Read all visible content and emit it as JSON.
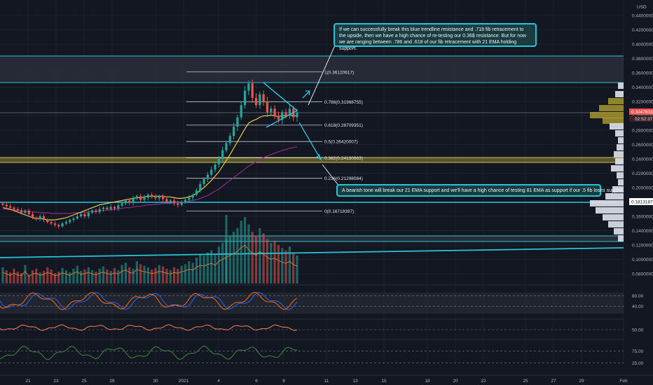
{
  "colors": {
    "bg": "#131722",
    "grid": "#1e222d",
    "up": "#26a69a",
    "down": "#ef5350",
    "ema21": "#e6c84a",
    "ema81": "#8e2a8a",
    "trend": "#26c6da",
    "fib": "#c9ccd3",
    "zone": "#2a2e39",
    "yellow_band": "#d4c34a",
    "vp_light": "#e0e3eb",
    "vp_yellow": "#b8a830",
    "stoch_k": "#2962ff",
    "stoch_d": "#ff6d00",
    "rsi_line": "#ff7d4f",
    "osc_line": "#3b8a3b"
  },
  "axis": {
    "currency": "USD",
    "price_labels": [
      "0.44000000",
      "0.42000000",
      "0.40000000",
      "0.38000000",
      "0.36000000",
      "0.34000000",
      "0.32000000",
      "0.30000000",
      "0.28000000",
      "0.26000000",
      "0.24000000",
      "0.22000000",
      "0.20000000",
      "0.18000000",
      "0.16000000",
      "0.14000000",
      "0.12000000",
      "0.10000000",
      "0.08000000"
    ],
    "current_price": "0.30478339",
    "countdown": "02:52:37",
    "level_label": "0.18131873",
    "date_labels": [
      "21",
      "23",
      "25",
      "28",
      "30",
      "2021",
      "4",
      "6",
      "8",
      "11",
      "13",
      "15",
      "18",
      "20",
      "22",
      "25",
      "27",
      "29",
      "Feb"
    ]
  },
  "panels": {
    "stoch_labels": [
      "80.00",
      "40.00"
    ],
    "rsi_labels": [
      "50.00"
    ],
    "osc_labels": [
      "75.00",
      "25.00"
    ]
  },
  "chart_data": {
    "type": "candlestick",
    "ylim": [
      0.05,
      0.45
    ],
    "fib_levels": [
      {
        "label": "1(0.36120617)",
        "value": 0.36120617
      },
      {
        "label": "0.786(0.31968755)",
        "value": 0.31968755
      },
      {
        "label": "0.618(0.28709351)",
        "value": 0.28709351
      },
      {
        "label": "0.5(0.26420007)",
        "value": 0.26420007
      },
      {
        "label": "0.382(0.24130663)",
        "value": 0.24130663
      },
      {
        "label": "0.236(0.21298084)",
        "value": 0.21298084
      },
      {
        "label": "0(0.16719397)",
        "value": 0.16719397
      }
    ],
    "closes": [
      0.176,
      0.174,
      0.172,
      0.17,
      0.168,
      0.165,
      0.168,
      0.163,
      0.158,
      0.156,
      0.16,
      0.155,
      0.152,
      0.15,
      0.148,
      0.146,
      0.15,
      0.152,
      0.155,
      0.157,
      0.16,
      0.163,
      0.16,
      0.165,
      0.168,
      0.166,
      0.17,
      0.172,
      0.17,
      0.173,
      0.171,
      0.175,
      0.178,
      0.182,
      0.179,
      0.185,
      0.188,
      0.183,
      0.186,
      0.19,
      0.187,
      0.185,
      0.188,
      0.184,
      0.18,
      0.182,
      0.178,
      0.176,
      0.18,
      0.183,
      0.186,
      0.19,
      0.196,
      0.205,
      0.212,
      0.218,
      0.225,
      0.232,
      0.24,
      0.252,
      0.262,
      0.272,
      0.285,
      0.298,
      0.315,
      0.335,
      0.345,
      0.325,
      0.315,
      0.33,
      0.32,
      0.305,
      0.31,
      0.3,
      0.295,
      0.305,
      0.3,
      0.31,
      0.298,
      0.305
    ],
    "volumes": [
      22,
      18,
      15,
      20,
      16,
      14,
      25,
      12,
      18,
      20,
      15,
      17,
      22,
      19,
      14,
      16,
      21,
      18,
      15,
      20,
      24,
      17,
      19,
      22,
      18,
      16,
      20,
      23,
      19,
      17,
      21,
      18,
      25,
      28,
      22,
      20,
      30,
      26,
      24,
      22,
      19,
      21,
      25,
      23,
      20,
      18,
      22,
      20,
      24,
      26,
      30,
      28,
      35,
      40,
      38,
      42,
      45,
      40,
      50,
      55,
      60,
      65,
      70,
      75,
      85,
      90,
      80,
      70,
      65,
      75,
      68,
      60,
      55,
      58,
      52,
      48,
      45,
      50,
      42,
      38
    ],
    "ema21": [
      0.172,
      0.171,
      0.17,
      0.168,
      0.166,
      0.164,
      0.162,
      0.16,
      0.158,
      0.157,
      0.157,
      0.156,
      0.155,
      0.155,
      0.155,
      0.156,
      0.157,
      0.158,
      0.16,
      0.162,
      0.164,
      0.166,
      0.168,
      0.17,
      0.172,
      0.174,
      0.176,
      0.177,
      0.178,
      0.179,
      0.18,
      0.181,
      0.182,
      0.183,
      0.184,
      0.185,
      0.186,
      0.186,
      0.187,
      0.188,
      0.188,
      0.188,
      0.188,
      0.188,
      0.187,
      0.187,
      0.186,
      0.185,
      0.185,
      0.186,
      0.187,
      0.189,
      0.192,
      0.196,
      0.2,
      0.205,
      0.21,
      0.216,
      0.222,
      0.23,
      0.238,
      0.246,
      0.255,
      0.264,
      0.273,
      0.282,
      0.29,
      0.293,
      0.295,
      0.298,
      0.3,
      0.3,
      0.301,
      0.3,
      0.299,
      0.3,
      0.3,
      0.301,
      0.3,
      0.3
    ],
    "ema81": [
      0.17,
      0.17,
      0.169,
      0.169,
      0.168,
      0.168,
      0.167,
      0.167,
      0.166,
      0.166,
      0.165,
      0.165,
      0.165,
      0.164,
      0.164,
      0.164,
      0.164,
      0.164,
      0.164,
      0.165,
      0.165,
      0.165,
      0.166,
      0.166,
      0.167,
      0.167,
      0.168,
      0.168,
      0.169,
      0.169,
      0.17,
      0.17,
      0.171,
      0.172,
      0.172,
      0.173,
      0.174,
      0.174,
      0.175,
      0.176,
      0.176,
      0.177,
      0.177,
      0.178,
      0.178,
      0.178,
      0.179,
      0.179,
      0.179,
      0.18,
      0.181,
      0.182,
      0.183,
      0.185,
      0.187,
      0.189,
      0.192,
      0.195,
      0.198,
      0.202,
      0.206,
      0.21,
      0.214,
      0.218,
      0.222,
      0.226,
      0.23,
      0.233,
      0.236,
      0.239,
      0.242,
      0.244,
      0.246,
      0.248,
      0.25,
      0.252,
      0.253,
      0.255,
      0.256,
      0.257
    ]
  },
  "notes": {
    "top": "If we can successfully break this blue trendline resistance and .718 fib retracement to the upside, then we have a high chance of re-testing our 0.36$ resistance. But for now we are ranging between .786 and .618 of our fib retracement with 21 EMA holding support.",
    "bottom": "A bearish tone will break our 21 EMA support and we'll have a high chance of testing 81 EMA as support if our .5 fib loses support."
  }
}
